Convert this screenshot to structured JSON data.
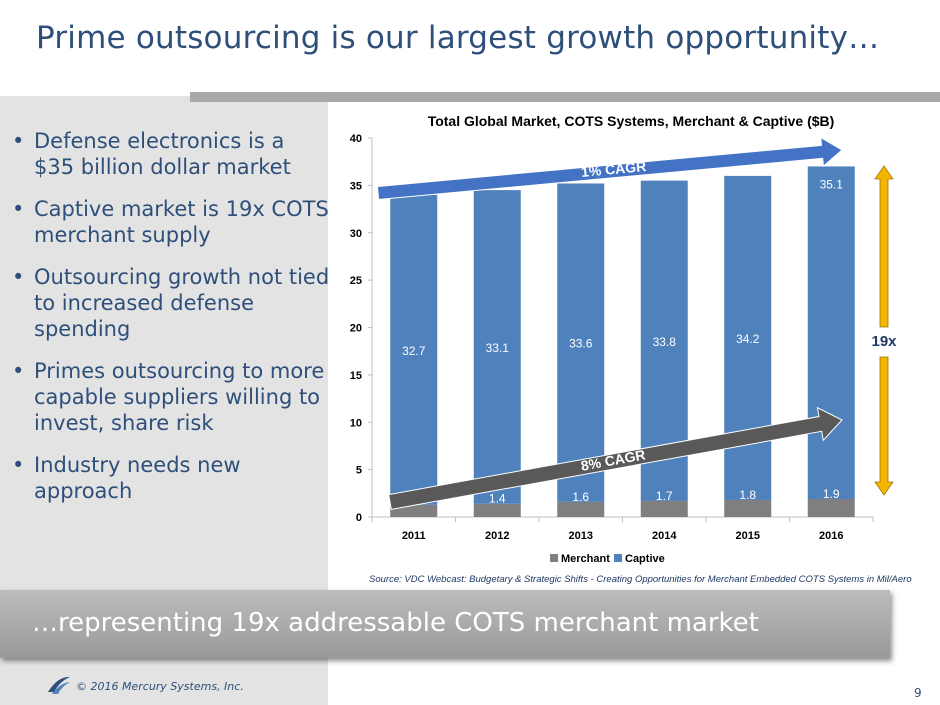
{
  "slide": {
    "title": "Prime outsourcing is our largest growth opportunity…",
    "bullets": [
      "Defense electronics is a $35 billion dollar market",
      "Captive market is 19x COTS merchant supply",
      "Outsourcing growth not tied to increased defense spending",
      "Primes outsourcing to more capable suppliers willing to invest, share risk",
      "Industry needs new approach"
    ],
    "banner": "…representing 19x addressable COTS merchant market",
    "footer": "© 2016 Mercury Systems, Inc.",
    "page_number": "9",
    "source": "Source: VDC Webcast: Budgetary & Strategic Shifts - Creating Opportunities for Merchant Embedded COTS Systems in Mil/Aero"
  },
  "chart_data": {
    "type": "bar",
    "stacked": true,
    "title": "Total Global Market, COTS Systems, Merchant & Captive ($B)",
    "categories": [
      "2011",
      "2012",
      "2013",
      "2014",
      "2015",
      "2016"
    ],
    "series": [
      {
        "name": "Merchant",
        "values": [
          1.3,
          1.4,
          1.6,
          1.7,
          1.8,
          1.9
        ],
        "color": "#7f7f7f"
      },
      {
        "name": "Captive",
        "values": [
          32.7,
          33.1,
          33.6,
          33.8,
          34.2,
          35.1
        ],
        "color": "#4f81bd"
      }
    ],
    "ylim": [
      0,
      40
    ],
    "yticks": [
      0,
      5,
      10,
      15,
      20,
      25,
      30,
      35,
      40
    ],
    "legend": "bottom",
    "annotations": {
      "captive_cagr": "1% CAGR",
      "merchant_cagr": "8% CAGR",
      "ratio": "19x"
    },
    "colors": {
      "arrow": "#4472c4",
      "merchant_arrow": "#595959",
      "ratio_arrow": "#f4b400",
      "ratio_text": "#1f3864"
    }
  }
}
